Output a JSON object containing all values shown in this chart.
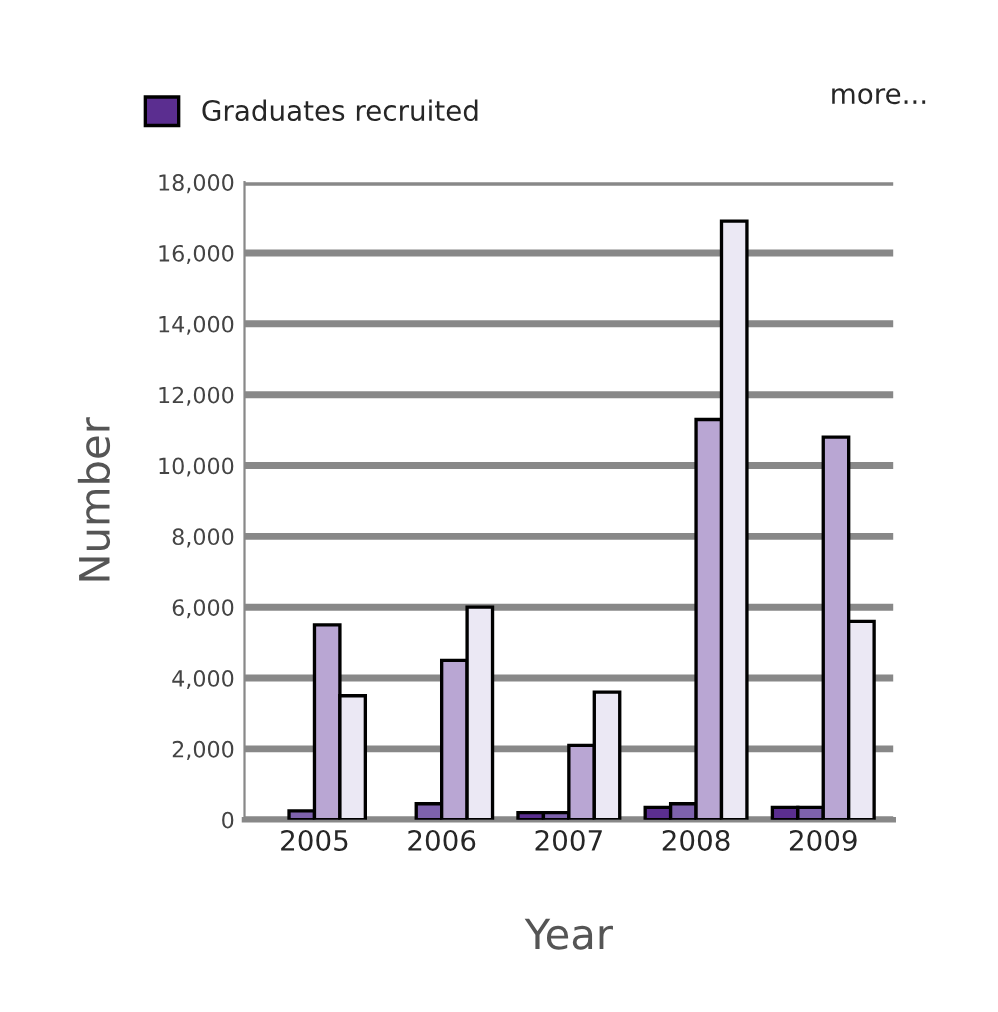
{
  "chart_data": {
    "type": "bar",
    "xlabel": "Year",
    "ylabel": "Number",
    "categories": [
      "2005",
      "2006",
      "2007",
      "2008",
      "2009"
    ],
    "series": [
      {
        "name": "Graduates recruited",
        "color": "#5b2e90",
        "values": [
          null,
          null,
          200,
          350,
          350
        ]
      },
      {
        "color": "#7e62ad",
        "values": [
          250,
          450,
          200,
          450,
          350
        ]
      },
      {
        "color": "#b9a6d3",
        "values": [
          5500,
          4500,
          2100,
          11300,
          10800
        ]
      },
      {
        "color": "#ebe8f4",
        "values": [
          3500,
          6000,
          3600,
          16900,
          5600
        ]
      }
    ],
    "ylim": [
      0,
      18000
    ],
    "yticks": [
      0,
      {
        "value": 2000,
        "label": "2,000"
      },
      {
        "value": 4000,
        "label": "4,000"
      },
      {
        "value": 6000,
        "label": "6,000"
      },
      {
        "value": 8000,
        "label": "8,000"
      },
      {
        "value": 10000,
        "label": "10,000"
      },
      {
        "value": 12000,
        "label": "12,000"
      },
      {
        "value": 14000,
        "label": "14,000"
      },
      {
        "value": 16000,
        "label": "16,000"
      },
      {
        "value": 18000,
        "label": "18,000"
      }
    ],
    "grid": "y",
    "legend": "top left",
    "annotations": [
      "more..."
    ]
  }
}
